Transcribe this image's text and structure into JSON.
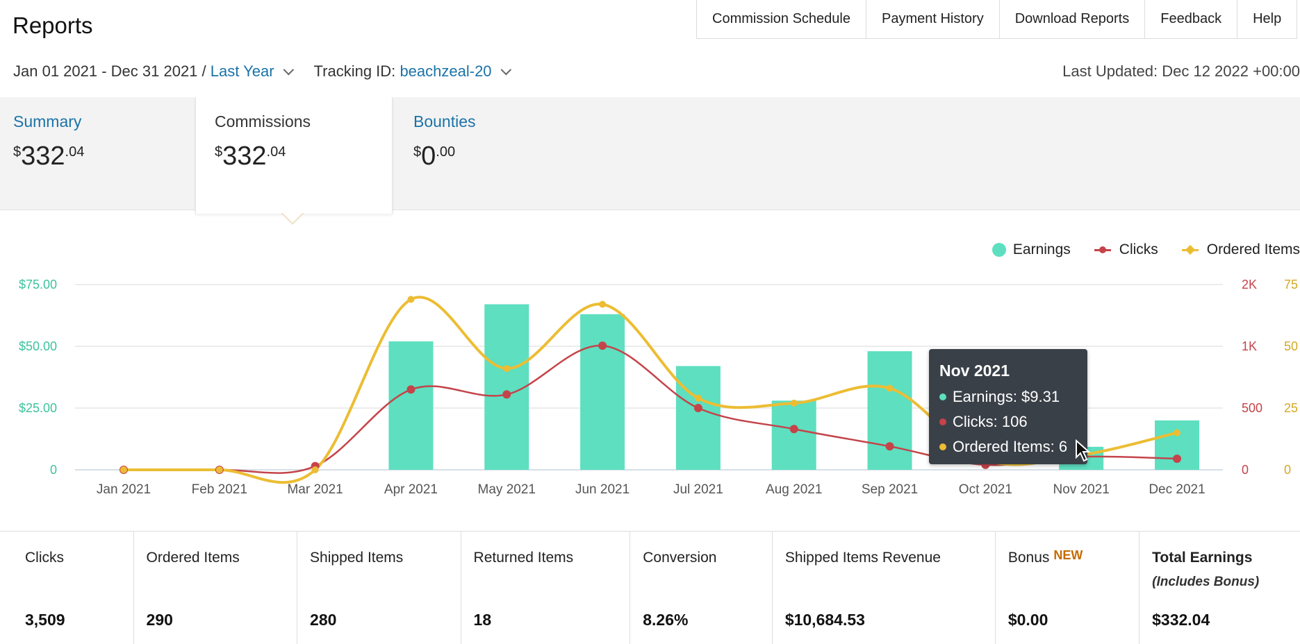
{
  "header": {
    "title": "Reports",
    "nav": [
      "Commission Schedule",
      "Payment History",
      "Download Reports",
      "Feedback",
      "Help"
    ]
  },
  "filters": {
    "date_range": "Jan 01 2021 - Dec 31 2021 /",
    "date_preset": "Last Year",
    "tracking_label": "Tracking ID:",
    "tracking_id": "beachzeal-20",
    "last_updated": "Last Updated: Dec 12 2022 +00:00"
  },
  "tabs": {
    "summary": {
      "label": "Summary",
      "currency": "$",
      "whole": "332",
      "cents": ".04"
    },
    "commissions": {
      "label": "Commissions",
      "currency": "$",
      "whole": "332",
      "cents": ".04"
    },
    "bounties": {
      "label": "Bounties",
      "currency": "$",
      "whole": "0",
      "cents": ".00"
    }
  },
  "legend": {
    "earnings": "Earnings",
    "clicks": "Clicks",
    "ordered": "Ordered Items"
  },
  "colors": {
    "earnings": "#5ddfc0",
    "clicks": "#c4444a",
    "ordered": "#ecbd34",
    "link": "#1a73a8"
  },
  "chart_data": {
    "type": "bar",
    "categories": [
      "Jan 2021",
      "Feb 2021",
      "Mar 2021",
      "Apr 2021",
      "May 2021",
      "Jun 2021",
      "Jul 2021",
      "Aug 2021",
      "Sep 2021",
      "Oct 2021",
      "Nov 2021",
      "Dec 2021"
    ],
    "series": [
      {
        "name": "Earnings",
        "type": "bar",
        "axis": "left",
        "values": [
          0,
          0,
          0,
          52,
          67,
          63,
          42,
          28,
          48,
          0,
          9.31,
          20
        ]
      },
      {
        "name": "Clicks",
        "type": "line",
        "axis": "right1",
        "values": [
          0,
          0,
          30,
          650,
          610,
          1010,
          500,
          330,
          190,
          40,
          106,
          90
        ]
      },
      {
        "name": "Ordered Items",
        "type": "line",
        "axis": "right2",
        "values": [
          0,
          0,
          0,
          69,
          41,
          67,
          29,
          27,
          33,
          4,
          6,
          15
        ]
      }
    ],
    "y_left": {
      "ticks": [
        "0",
        "$25.00",
        "$50.00",
        "$75.00"
      ],
      "range": [
        0,
        75
      ]
    },
    "y_right_clicks": {
      "ticks": [
        "0",
        "500",
        "1K",
        "2K"
      ]
    },
    "y_right_items": {
      "ticks": [
        "0",
        "25",
        "50",
        "75"
      ],
      "range": [
        0,
        75
      ]
    },
    "grid": true,
    "legend_position": "top-right"
  },
  "tooltip": {
    "title": "Nov 2021",
    "earnings": "Earnings: $9.31",
    "clicks": "Clicks: 106",
    "ordered": "Ordered Items: 6"
  },
  "stats": [
    {
      "label": "Clicks",
      "value": "3,509"
    },
    {
      "label": "Ordered Items",
      "value": "290"
    },
    {
      "label": "Shipped Items",
      "value": "280"
    },
    {
      "label": "Returned Items",
      "value": "18"
    },
    {
      "label": "Conversion",
      "value": "8.26%"
    },
    {
      "label": "Shipped Items Revenue",
      "value": "$10,684.53"
    },
    {
      "label": "Bonus",
      "badge": "NEW",
      "value": "$0.00"
    },
    {
      "label": "Total Earnings",
      "sub": "(Includes Bonus)",
      "value": "$332.04"
    }
  ]
}
